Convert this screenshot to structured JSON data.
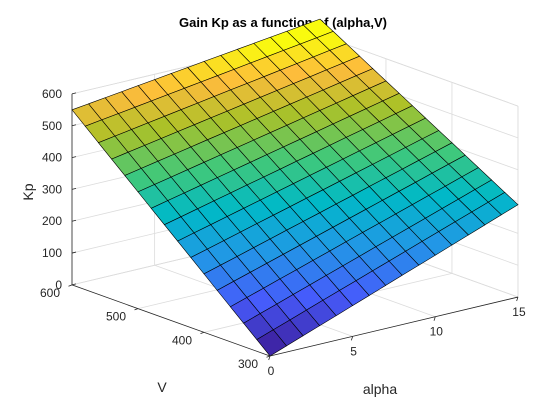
{
  "chart_data": {
    "type": "surface",
    "title": "Gain Kp as a function of (alpha,V)",
    "xlabel": "alpha",
    "ylabel": "V",
    "zlabel": "Kp",
    "xlim": [
      0,
      15
    ],
    "ylim": [
      300,
      600
    ],
    "zlim": [
      0,
      600
    ],
    "xticks": [
      0,
      5,
      10,
      15
    ],
    "yticks": [
      300,
      400,
      500,
      600
    ],
    "zticks": [
      0,
      100,
      200,
      300,
      400,
      500,
      600
    ],
    "grid": true,
    "colormap": "parula",
    "mesh": {
      "alpha_steps": 15,
      "v_steps": 15
    },
    "corners": [
      {
        "alpha": 0,
        "V": 300,
        "Kp": 0
      },
      {
        "alpha": 15,
        "V": 300,
        "Kp": 290
      },
      {
        "alpha": 0,
        "V": 600,
        "Kp": 550
      },
      {
        "alpha": 15,
        "V": 600,
        "Kp": 650
      }
    ]
  }
}
